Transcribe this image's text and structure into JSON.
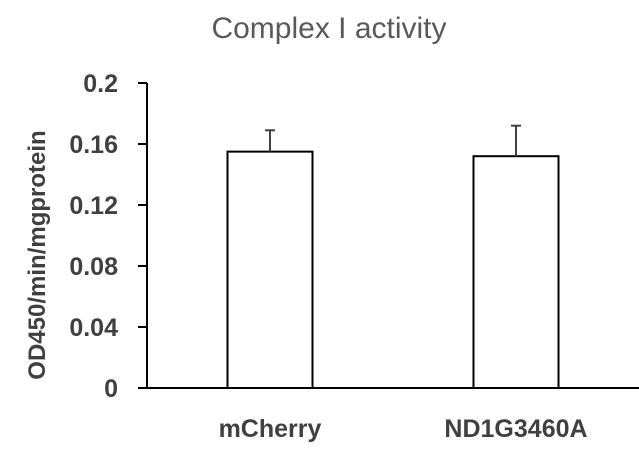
{
  "chart_data": {
    "type": "bar",
    "title": "Complex I activity",
    "ylabel": "OD450/min/mgprotein",
    "xlabel": "",
    "categories": [
      "mCherry",
      "ND1G3460A"
    ],
    "values": [
      0.155,
      0.152
    ],
    "errors": [
      0.014,
      0.02
    ],
    "ylim": [
      0,
      0.2
    ],
    "yticks": [
      0,
      0.04,
      0.08,
      0.12,
      0.16,
      0.2
    ],
    "ytick_labels": [
      "0",
      "0.04",
      "0.08",
      "0.12",
      "0.16",
      "0.2"
    ],
    "grid": false,
    "legend": "none",
    "colors": {
      "bar_fill": "#ffffff",
      "bar_stroke": "#000000",
      "error_bar": "#404040",
      "axis": "#000000"
    }
  }
}
